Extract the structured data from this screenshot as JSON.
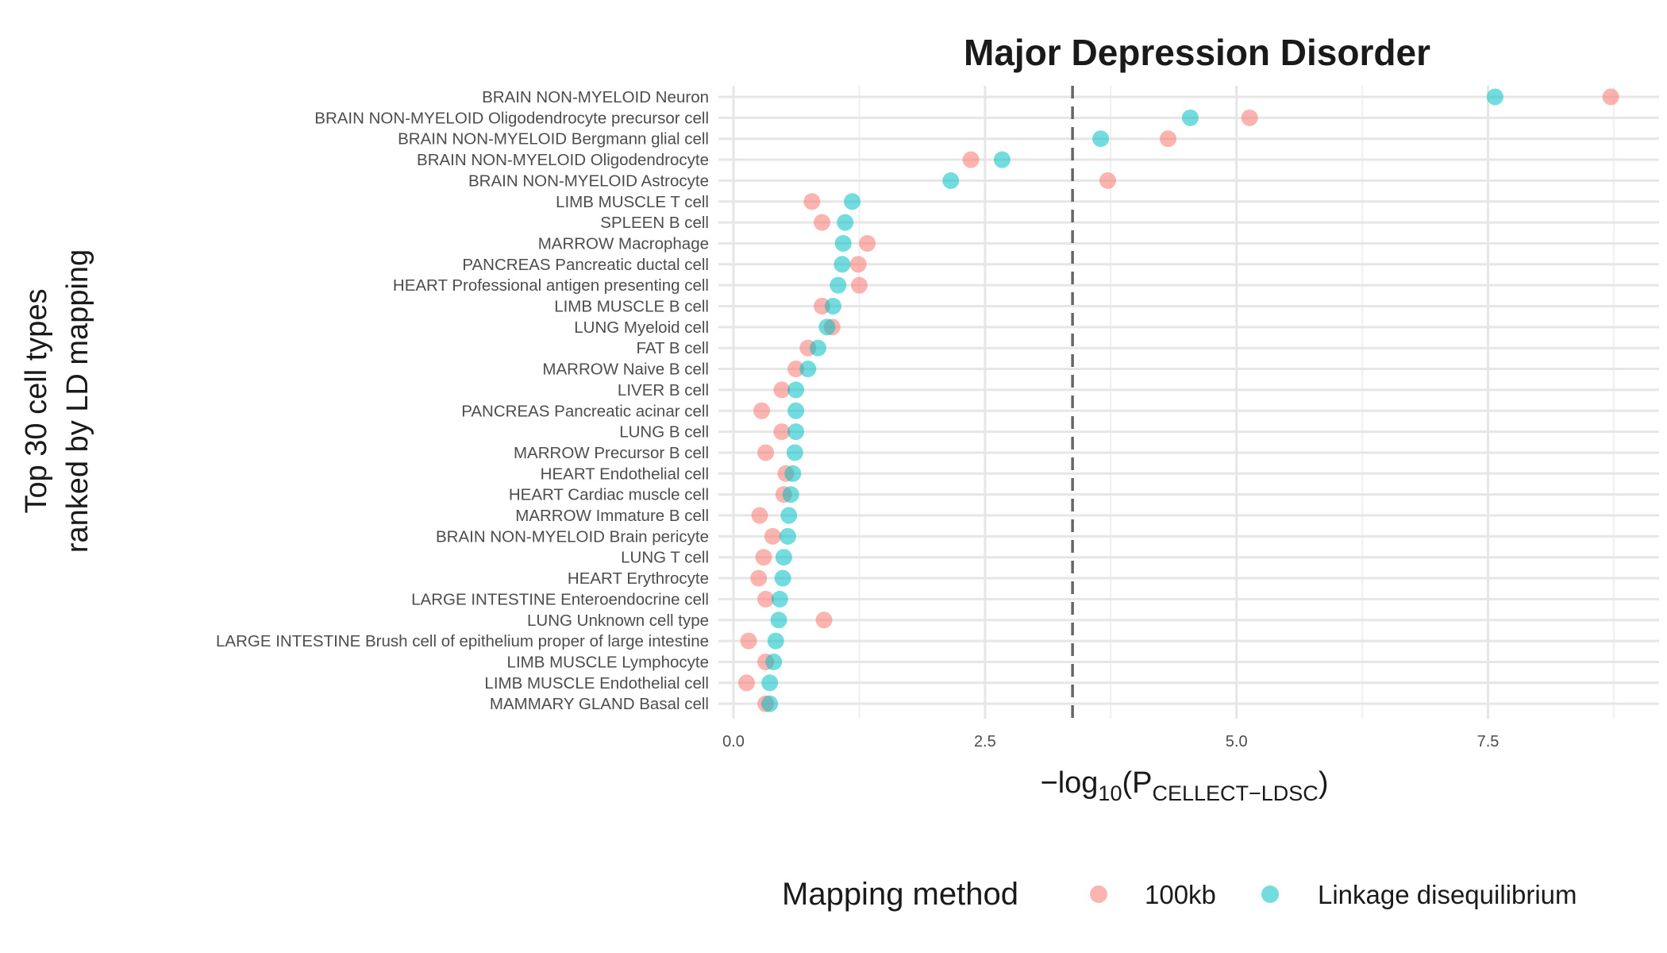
{
  "chart_data": {
    "type": "scatter",
    "title": "Major Depression Disorder",
    "ylabel": [
      "Top 30 cell types",
      "ranked by LD mapping"
    ],
    "xlabel": {
      "prefix": "−log",
      "sub1": "10",
      "open": "(P",
      "sub2": "CELLECT−LDSC",
      "close": ")"
    },
    "xlim": [
      -0.15,
      9.2
    ],
    "xticks": [
      0.0,
      2.5,
      5.0,
      7.5
    ],
    "xtick_labels": [
      "0.0",
      "2.5",
      "5.0",
      "7.5"
    ],
    "threshold": 3.37,
    "grid": true,
    "legend": {
      "title": "Mapping method",
      "position": "bottom"
    },
    "categories": [
      "BRAIN NON-MYELOID Neuron",
      "BRAIN NON-MYELOID Oligodendrocyte precursor cell",
      "BRAIN NON-MYELOID Bergmann glial cell",
      "BRAIN NON-MYELOID Oligodendrocyte",
      "BRAIN NON-MYELOID Astrocyte",
      "LIMB MUSCLE T cell",
      "SPLEEN B cell",
      "MARROW Macrophage",
      "PANCREAS Pancreatic ductal cell",
      "HEART Professional antigen presenting cell",
      "LIMB MUSCLE B cell",
      "LUNG Myeloid cell",
      "FAT B cell",
      "MARROW Naive B cell",
      "LIVER B cell",
      "PANCREAS Pancreatic acinar cell",
      "LUNG B cell",
      "MARROW Precursor B cell",
      "HEART Endothelial cell",
      "HEART Cardiac muscle cell",
      "MARROW Immature B cell",
      "BRAIN NON-MYELOID Brain pericyte",
      "LUNG T cell",
      "HEART Erythrocyte",
      "LARGE INTESTINE Enteroendocrine cell",
      "LUNG Unknown cell type",
      "LARGE INTESTINE Brush cell of epithelium proper of large intestine",
      "LIMB MUSCLE Lymphocyte",
      "LIMB MUSCLE Endothelial cell",
      "MAMMARY GLAND Basal cell"
    ],
    "series": [
      {
        "name": "100kb",
        "color": "#F8766D",
        "values": [
          8.72,
          5.13,
          4.32,
          2.36,
          3.72,
          0.78,
          0.88,
          1.33,
          1.24,
          1.25,
          0.88,
          0.98,
          0.74,
          0.62,
          0.48,
          0.28,
          0.48,
          0.32,
          0.52,
          0.5,
          0.26,
          0.39,
          0.3,
          0.25,
          0.32,
          0.9,
          0.15,
          0.32,
          0.13,
          0.32
        ]
      },
      {
        "name": "Linkage disequilibrium",
        "color": "#00BFC4",
        "values": [
          7.57,
          4.54,
          3.65,
          2.67,
          2.16,
          1.18,
          1.11,
          1.09,
          1.08,
          1.04,
          0.99,
          0.93,
          0.84,
          0.74,
          0.62,
          0.62,
          0.62,
          0.61,
          0.59,
          0.57,
          0.55,
          0.54,
          0.5,
          0.49,
          0.46,
          0.45,
          0.42,
          0.4,
          0.36,
          0.36
        ]
      }
    ]
  }
}
